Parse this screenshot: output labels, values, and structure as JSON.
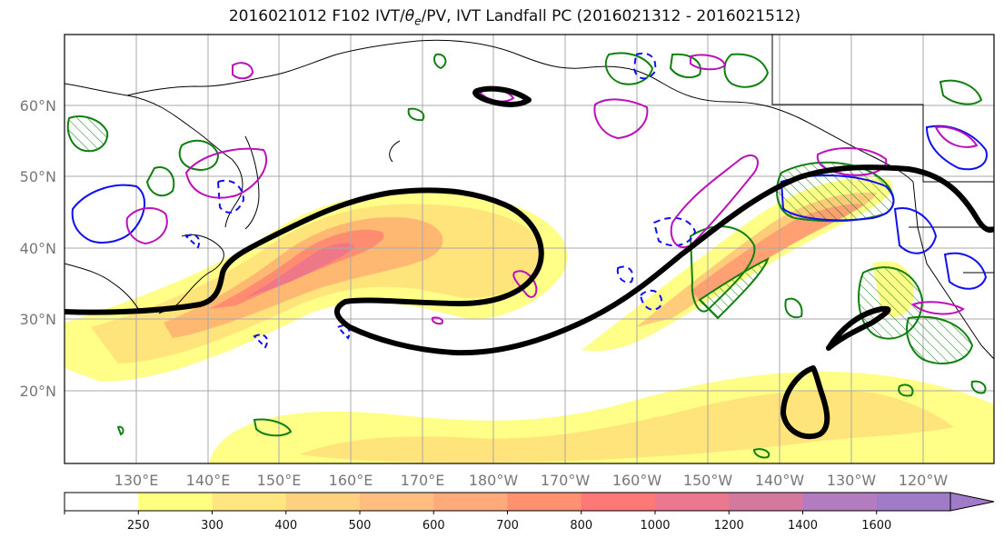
{
  "title": {
    "prefix": "2016021012 F102 IVT/",
    "theta": "θ",
    "theta_sub": "e",
    "suffix": "/PV, IVT Landfall PC (2016021312 - 2016021512)"
  },
  "map": {
    "projection": "equirectangular",
    "lon_range_east": [
      120,
      250
    ],
    "lat_range": [
      10,
      70
    ],
    "lat_labels": [
      "20°N",
      "30°N",
      "40°N",
      "50°N",
      "60°N"
    ],
    "lon_labels": [
      "130°E",
      "140°E",
      "150°E",
      "160°E",
      "170°E",
      "180°W",
      "170°W",
      "160°W",
      "150°W",
      "140°W",
      "130°W",
      "120°W"
    ],
    "gridlines": true,
    "layers": [
      {
        "name": "IVT filled contours",
        "colors": "yellow-to-purple"
      },
      {
        "name": "theta-e contours",
        "color": "#1010ee",
        "style": "solid and dashed"
      },
      {
        "name": "PV contours",
        "color": "#bb10bb"
      },
      {
        "name": "green contours",
        "color": "#108010",
        "style": "hatched"
      },
      {
        "name": "IVT landfall PC contour",
        "color": "#000000",
        "style": "thick"
      }
    ]
  },
  "colorbar": {
    "levels": [
      "250",
      "300",
      "400",
      "500",
      "600",
      "700",
      "800",
      "1000",
      "1200",
      "1400",
      "1600"
    ],
    "colors": [
      "#ffffff",
      "#ffff80",
      "#ffe680",
      "#ffd080",
      "#ffbe80",
      "#ffaa7a",
      "#ff9070",
      "#ff7878",
      "#ec7890",
      "#d478a0",
      "#b47cc0",
      "#a07cc8"
    ],
    "extend": "max"
  }
}
